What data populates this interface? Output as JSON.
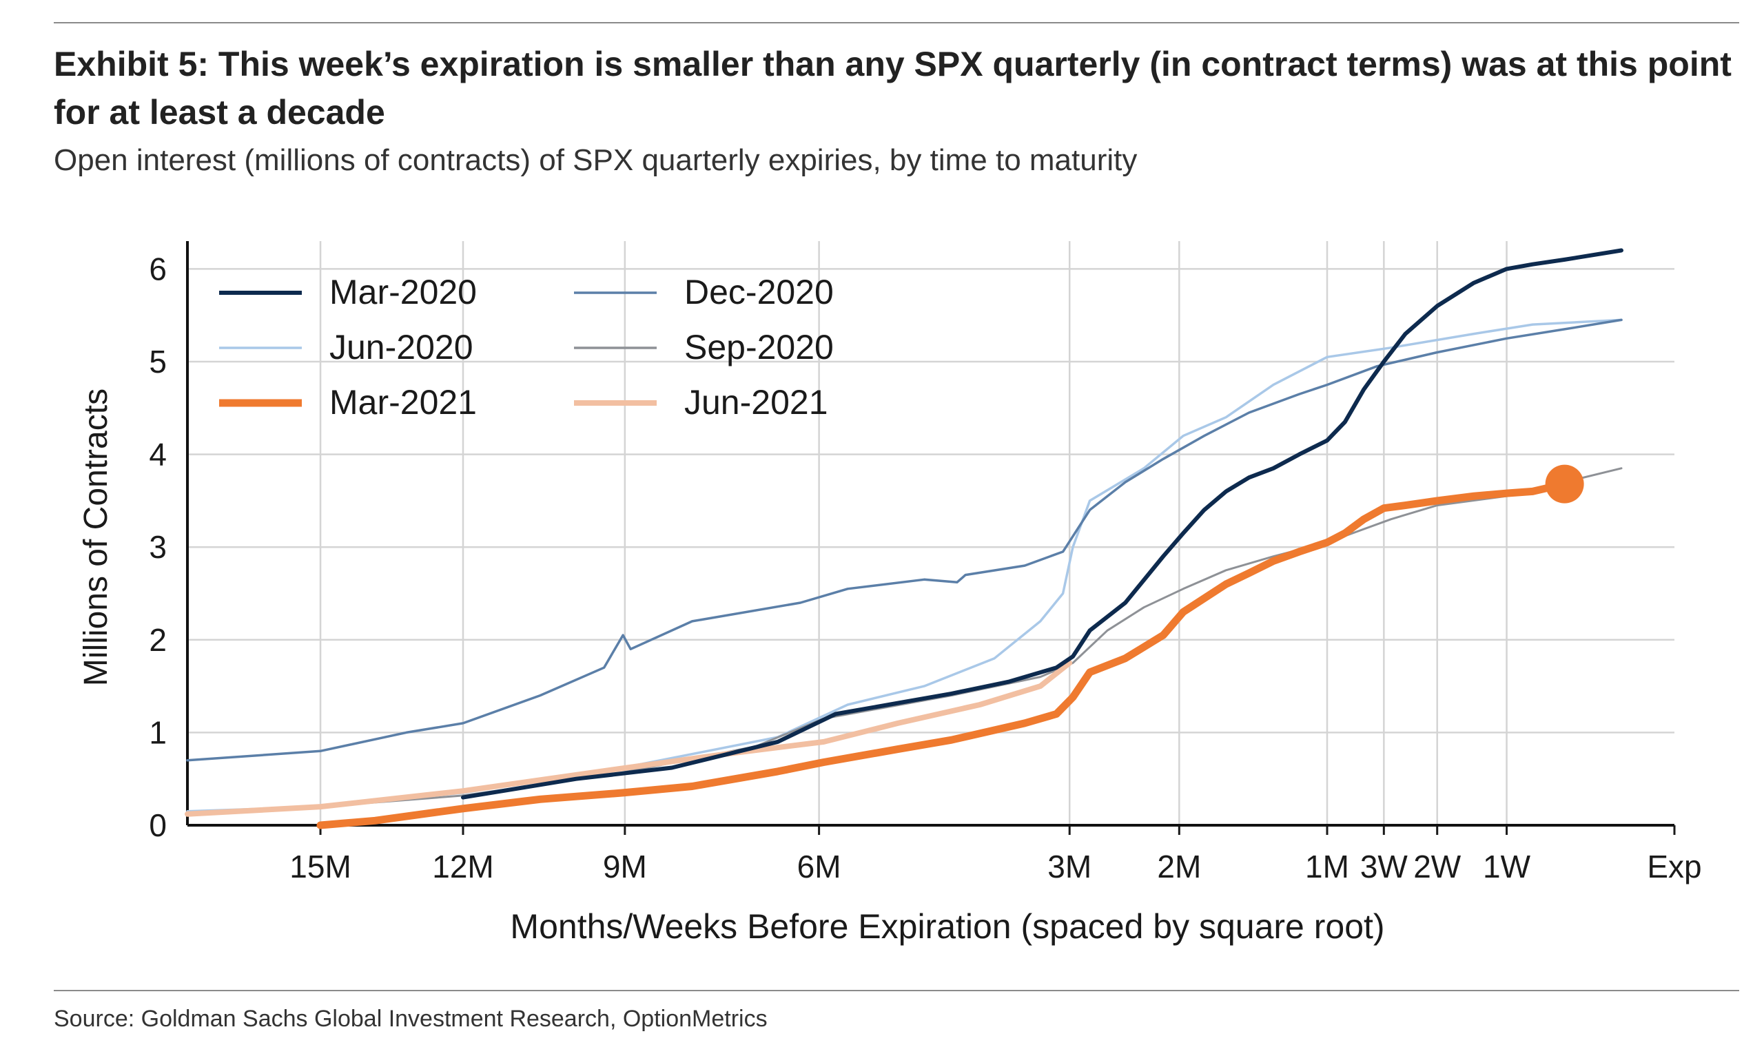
{
  "exhibit": {
    "title": "Exhibit 5: This week’s expiration is smaller than any SPX quarterly (in contract terms) was at this point for at least a decade",
    "subtitle": "Open interest (millions of contracts) of SPX quarterly expiries, by time to maturity",
    "source": "Source: Goldman Sachs Global Investment Research, OptionMetrics"
  },
  "chart_data": {
    "type": "line",
    "xlabel": "Months/Weeks Before Expiration (spaced by square root)",
    "ylabel": "Millions of Contracts",
    "x_scale": "sqrt",
    "x_unit": "days before expiration",
    "x_reversed": true,
    "xlim": [
      550,
      0
    ],
    "ylim": [
      0,
      6.3
    ],
    "x_ticks": [
      {
        "label": "15M",
        "days": 456
      },
      {
        "label": "12M",
        "days": 365
      },
      {
        "label": "9M",
        "days": 274
      },
      {
        "label": "6M",
        "days": 182
      },
      {
        "label": "3M",
        "days": 91
      },
      {
        "label": "2M",
        "days": 61
      },
      {
        "label": "1M",
        "days": 30
      },
      {
        "label": "3W",
        "days": 21
      },
      {
        "label": "2W",
        "days": 14
      },
      {
        "label": "1W",
        "days": 7
      },
      {
        "label": "Exp",
        "days": 0
      }
    ],
    "y_ticks": [
      "0",
      "1",
      "2",
      "3",
      "4",
      "5",
      "6"
    ],
    "grid": true,
    "legend_position": "top-left",
    "series": [
      {
        "name": "Mar-2020",
        "color": "#0d2a4e",
        "width": 6,
        "order": 5,
        "points": [
          [
            365,
            0.3
          ],
          [
            300,
            0.5
          ],
          [
            250,
            0.62
          ],
          [
            200,
            0.9
          ],
          [
            175,
            1.2
          ],
          [
            130,
            1.42
          ],
          [
            110,
            1.55
          ],
          [
            95,
            1.7
          ],
          [
            90,
            1.82
          ],
          [
            85,
            2.1
          ],
          [
            75,
            2.4
          ],
          [
            65,
            2.9
          ],
          [
            60,
            3.15
          ],
          [
            55,
            3.4
          ],
          [
            50,
            3.6
          ],
          [
            45,
            3.75
          ],
          [
            40,
            3.85
          ],
          [
            35,
            4.0
          ],
          [
            30,
            4.15
          ],
          [
            27,
            4.35
          ],
          [
            24,
            4.7
          ],
          [
            21,
            5.0
          ],
          [
            18,
            5.3
          ],
          [
            14,
            5.6
          ],
          [
            10,
            5.85
          ],
          [
            7,
            6.0
          ],
          [
            5,
            6.05
          ],
          [
            3,
            6.1
          ],
          [
            0.7,
            6.2
          ]
        ]
      },
      {
        "name": "Dec-2020",
        "color": "#5b7fa8",
        "width": 3.5,
        "order": 4,
        "points": [
          [
            550,
            0.7
          ],
          [
            456,
            0.8
          ],
          [
            400,
            1.0
          ],
          [
            365,
            1.1
          ],
          [
            320,
            1.4
          ],
          [
            285,
            1.7
          ],
          [
            275,
            2.05
          ],
          [
            271,
            1.9
          ],
          [
            240,
            2.2
          ],
          [
            190,
            2.4
          ],
          [
            170,
            2.55
          ],
          [
            140,
            2.65
          ],
          [
            128,
            2.62
          ],
          [
            125,
            2.7
          ],
          [
            105,
            2.8
          ],
          [
            93,
            2.95
          ],
          [
            85,
            3.4
          ],
          [
            75,
            3.7
          ],
          [
            65,
            3.95
          ],
          [
            55,
            4.2
          ],
          [
            45,
            4.45
          ],
          [
            35,
            4.65
          ],
          [
            30,
            4.75
          ],
          [
            22,
            4.95
          ],
          [
            14,
            5.1
          ],
          [
            7,
            5.25
          ],
          [
            3,
            5.35
          ],
          [
            0.7,
            5.45
          ]
        ]
      },
      {
        "name": "Jun-2020",
        "color": "#a9c8e8",
        "width": 3.5,
        "order": 1,
        "points": [
          [
            550,
            0.15
          ],
          [
            456,
            0.2
          ],
          [
            365,
            0.35
          ],
          [
            280,
            0.6
          ],
          [
            200,
            0.95
          ],
          [
            170,
            1.3
          ],
          [
            140,
            1.5
          ],
          [
            115,
            1.8
          ],
          [
            100,
            2.2
          ],
          [
            93,
            2.5
          ],
          [
            90,
            3.0
          ],
          [
            85,
            3.5
          ],
          [
            70,
            3.85
          ],
          [
            60,
            4.2
          ],
          [
            50,
            4.4
          ],
          [
            40,
            4.75
          ],
          [
            30,
            5.05
          ],
          [
            20,
            5.15
          ],
          [
            10,
            5.3
          ],
          [
            5,
            5.4
          ],
          [
            0.7,
            5.45
          ]
        ]
      },
      {
        "name": "Sep-2020",
        "color": "#8e9196",
        "width": 3,
        "order": 2,
        "points": [
          [
            550,
            0.12
          ],
          [
            456,
            0.2
          ],
          [
            365,
            0.32
          ],
          [
            280,
            0.55
          ],
          [
            210,
            0.85
          ],
          [
            180,
            1.15
          ],
          [
            130,
            1.4
          ],
          [
            100,
            1.6
          ],
          [
            90,
            1.75
          ],
          [
            80,
            2.1
          ],
          [
            70,
            2.35
          ],
          [
            60,
            2.55
          ],
          [
            50,
            2.75
          ],
          [
            40,
            2.9
          ],
          [
            30,
            3.05
          ],
          [
            20,
            3.3
          ],
          [
            14,
            3.45
          ],
          [
            7,
            3.55
          ],
          [
            3,
            3.7
          ],
          [
            0.7,
            3.85
          ]
        ]
      },
      {
        "name": "Mar-2021",
        "color": "#ef7a2f",
        "width": 11,
        "order": 6,
        "end_marker": true,
        "points": [
          [
            456,
            0.0
          ],
          [
            420,
            0.05
          ],
          [
            365,
            0.18
          ],
          [
            320,
            0.28
          ],
          [
            275,
            0.35
          ],
          [
            240,
            0.42
          ],
          [
            200,
            0.58
          ],
          [
            180,
            0.68
          ],
          [
            150,
            0.82
          ],
          [
            130,
            0.92
          ],
          [
            105,
            1.1
          ],
          [
            95,
            1.2
          ],
          [
            90,
            1.38
          ],
          [
            85,
            1.65
          ],
          [
            75,
            1.8
          ],
          [
            65,
            2.05
          ],
          [
            60,
            2.3
          ],
          [
            50,
            2.6
          ],
          [
            45,
            2.72
          ],
          [
            40,
            2.85
          ],
          [
            35,
            2.95
          ],
          [
            30,
            3.05
          ],
          [
            27,
            3.15
          ],
          [
            24,
            3.3
          ],
          [
            21,
            3.42
          ],
          [
            18,
            3.45
          ],
          [
            14,
            3.5
          ],
          [
            10,
            3.55
          ],
          [
            7,
            3.58
          ],
          [
            5,
            3.6
          ],
          [
            3,
            3.68
          ]
        ]
      },
      {
        "name": "Jun-2021",
        "color": "#f2bfa1",
        "width": 8,
        "order": 3,
        "points": [
          [
            550,
            0.12
          ],
          [
            456,
            0.2
          ],
          [
            365,
            0.37
          ],
          [
            280,
            0.6
          ],
          [
            220,
            0.78
          ],
          [
            180,
            0.9
          ],
          [
            150,
            1.1
          ],
          [
            120,
            1.3
          ],
          [
            100,
            1.5
          ],
          [
            91,
            1.75
          ]
        ]
      }
    ]
  }
}
